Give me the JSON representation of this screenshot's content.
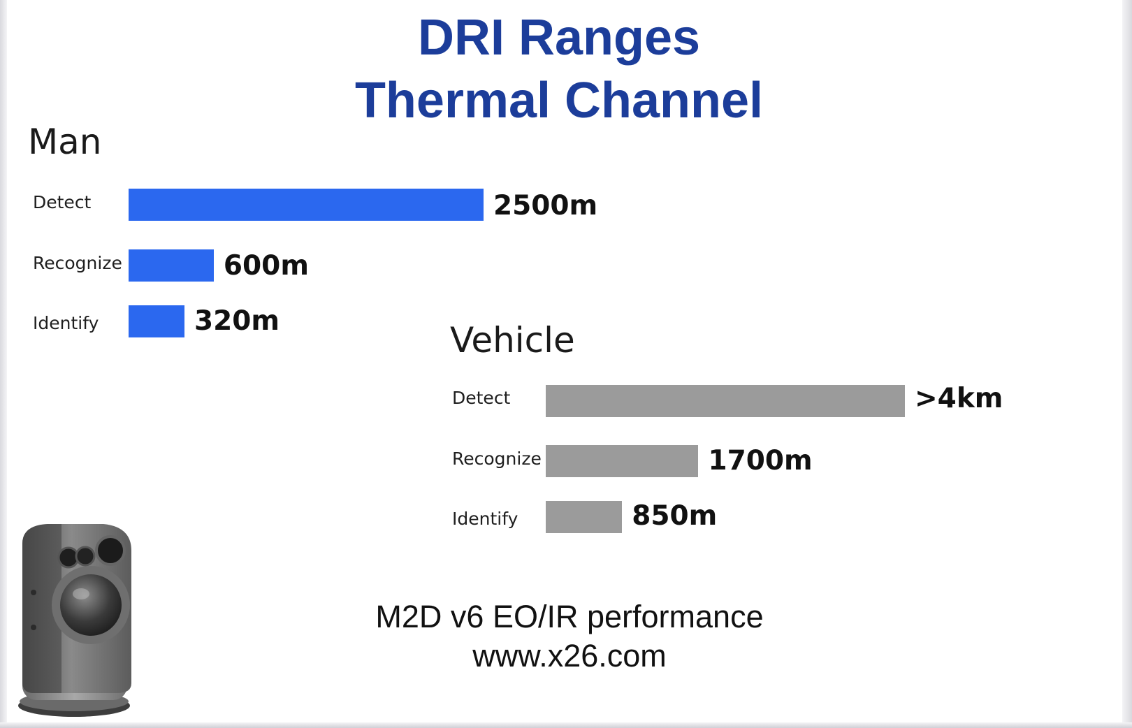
{
  "chart_data": [
    {
      "type": "bar",
      "title": "DRI Ranges Thermal Channel",
      "panel": "Man",
      "color": "#2b68ef",
      "categories": [
        "Detect",
        "Recognize",
        "Identify"
      ],
      "values": [
        2500,
        600,
        320
      ],
      "value_labels": [
        "2500m",
        "600m",
        "320m"
      ],
      "unit": "m",
      "orientation": "horizontal"
    },
    {
      "type": "bar",
      "title": "DRI Ranges Thermal Channel",
      "panel": "Vehicle",
      "color": "#9b9b9b",
      "categories": [
        "Detect",
        "Recognize",
        "Identify"
      ],
      "values": [
        4000,
        1700,
        850
      ],
      "value_labels": [
        ">4km",
        "1700m",
        "850m"
      ],
      "unit": "m",
      "orientation": "horizontal"
    }
  ],
  "title": {
    "line1": "DRI Ranges",
    "line2": "Thermal Channel",
    "color": "#1c3d9a"
  },
  "man": {
    "heading": "Man",
    "rows": [
      {
        "label": "Detect",
        "value": "2500m"
      },
      {
        "label": "Recognize",
        "value": "600m"
      },
      {
        "label": "Identify",
        "value": "320m"
      }
    ]
  },
  "vehicle": {
    "heading": "Vehicle",
    "rows": [
      {
        "label": "Detect",
        "value": ">4km"
      },
      {
        "label": "Recognize",
        "value": "1700m"
      },
      {
        "label": "Identify",
        "value": "850m"
      }
    ]
  },
  "footer": {
    "line1": "M2D v6 EO/IR performance",
    "line2": "www.x26.com"
  },
  "image": {
    "icon": "camera-gimbal-icon"
  }
}
